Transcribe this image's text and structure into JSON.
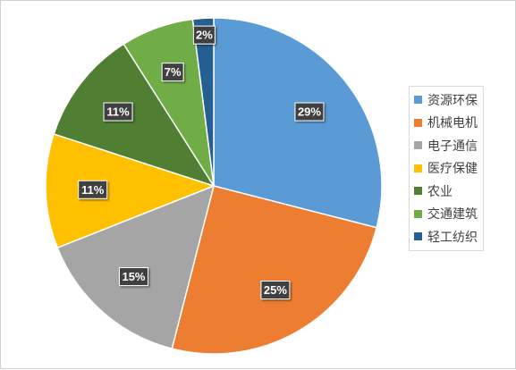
{
  "chart_data": {
    "type": "pie",
    "title": "",
    "categories": [
      "资源环保",
      "机械电机",
      "电子通信",
      "医疗保健",
      "农业",
      "交通建筑",
      "轻工纺织"
    ],
    "values": [
      29,
      25,
      15,
      11,
      11,
      7,
      2
    ],
    "labels": [
      "29%",
      "25%",
      "15%",
      "11%",
      "11%",
      "7%",
      "2%"
    ],
    "colors": [
      "#5b9bd5",
      "#ed7d31",
      "#a5a5a5",
      "#ffc000",
      "#507e32",
      "#70ad47",
      "#255e91"
    ],
    "start_angle": "12 o'clock",
    "direction": "clockwise",
    "legend_position": "right"
  }
}
